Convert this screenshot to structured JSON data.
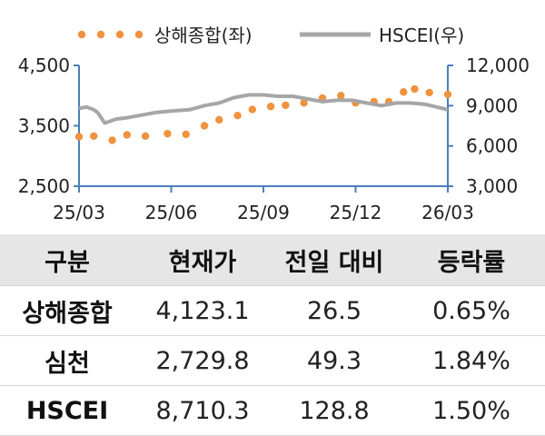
{
  "chart_data": {
    "type": "line",
    "dual_axis": true,
    "x_ticks": [
      "25/03",
      "25/06",
      "25/09",
      "25/12",
      "26/03"
    ],
    "y_left": {
      "range": [
        2500,
        4500
      ],
      "ticks": [
        "2,500",
        "3,500",
        "4,500"
      ],
      "tick_values": [
        2500,
        3500,
        4500
      ]
    },
    "y_right": {
      "range": [
        3000,
        12000
      ],
      "ticks": [
        "3,000",
        "6,000",
        "9,000",
        "12,000"
      ],
      "tick_values": [
        3000,
        6000,
        9000,
        12000
      ]
    },
    "legend_position": "top",
    "series": [
      {
        "name": "상해종합(좌)",
        "axis": "left",
        "style": "dotted",
        "color": "#f0923e",
        "x": [
          0.0,
          0.04,
          0.09,
          0.13,
          0.18,
          0.24,
          0.29,
          0.34,
          0.38,
          0.43,
          0.47,
          0.52,
          0.56,
          0.61,
          0.66,
          0.71,
          0.75,
          0.8,
          0.84,
          0.88,
          0.91,
          0.95,
          1.0
        ],
        "values": [
          3320,
          3330,
          3260,
          3350,
          3330,
          3370,
          3360,
          3500,
          3600,
          3670,
          3770,
          3820,
          3840,
          3880,
          3960,
          4000,
          3880,
          3900,
          3900,
          4060,
          4110,
          4050,
          4020
        ]
      },
      {
        "name": "HSCEI(우)",
        "axis": "right",
        "style": "solid",
        "color": "#a6a6a6",
        "x": [
          0.0,
          0.02,
          0.04,
          0.05,
          0.07,
          0.1,
          0.13,
          0.17,
          0.21,
          0.25,
          0.3,
          0.34,
          0.38,
          0.42,
          0.46,
          0.5,
          0.54,
          0.58,
          0.62,
          0.66,
          0.7,
          0.74,
          0.78,
          0.82,
          0.86,
          0.9,
          0.94,
          0.97,
          1.0
        ],
        "values": [
          8800,
          8900,
          8700,
          8500,
          7700,
          8000,
          8100,
          8300,
          8500,
          8600,
          8700,
          9000,
          9200,
          9600,
          9800,
          9800,
          9700,
          9700,
          9500,
          9300,
          9400,
          9400,
          9200,
          9000,
          9200,
          9200,
          9100,
          8900,
          8700
        ]
      }
    ]
  },
  "table": {
    "headers": [
      "구분",
      "현재가",
      "전일 대비",
      "등락률"
    ],
    "rows": [
      [
        "상해종합",
        "4,123.1",
        "26.5",
        "0.65%"
      ],
      [
        "심천",
        "2,729.8",
        "49.3",
        "1.84%"
      ],
      [
        "HSCEI",
        "8,710.3",
        "128.8",
        "1.50%"
      ]
    ]
  }
}
